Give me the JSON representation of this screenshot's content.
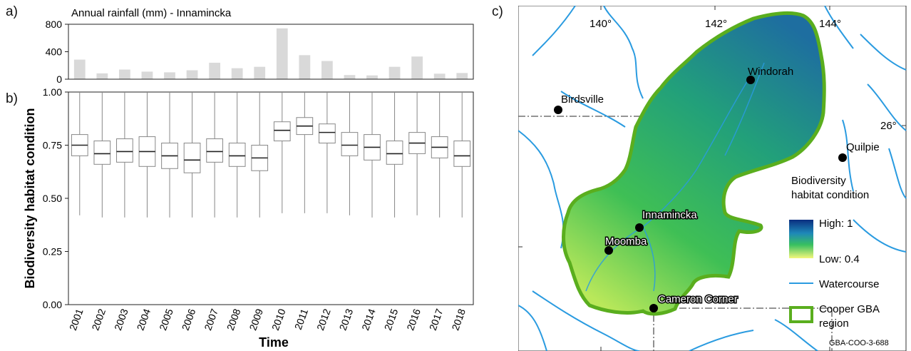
{
  "panels": {
    "a": "a)",
    "b": "b)",
    "c": "c)"
  },
  "chart_data": [
    {
      "type": "bar",
      "title": "Annual rainfall (mm) - Innamincka",
      "categories": [
        "2001",
        "2002",
        "2003",
        "2004",
        "2005",
        "2006",
        "2007",
        "2008",
        "2009",
        "2010",
        "2011",
        "2012",
        "2013",
        "2014",
        "2015",
        "2016",
        "2017",
        "2018"
      ],
      "values": [
        285,
        85,
        140,
        110,
        100,
        130,
        240,
        160,
        180,
        740,
        350,
        265,
        60,
        55,
        180,
        330,
        80,
        90
      ],
      "ylim": [
        0,
        800
      ],
      "yticks": [
        0,
        400,
        800
      ],
      "bar_color": "#d9d9d9"
    },
    {
      "type": "box",
      "xlabel": "Time",
      "ylabel": "Biodiversity habitat condition",
      "categories": [
        "2001",
        "2002",
        "2003",
        "2004",
        "2005",
        "2006",
        "2007",
        "2008",
        "2009",
        "2010",
        "2011",
        "2012",
        "2013",
        "2014",
        "2015",
        "2016",
        "2017",
        "2018"
      ],
      "ylim": [
        0,
        1
      ],
      "yticks": [
        "0.00",
        "0.25",
        "0.50",
        "0.75",
        "1.00"
      ],
      "series": [
        {
          "min": 0.42,
          "q1": 0.7,
          "median": 0.75,
          "q3": 0.8,
          "max": 1.0
        },
        {
          "min": 0.41,
          "q1": 0.66,
          "median": 0.71,
          "q3": 0.77,
          "max": 1.0
        },
        {
          "min": 0.41,
          "q1": 0.67,
          "median": 0.72,
          "q3": 0.78,
          "max": 1.0
        },
        {
          "min": 0.41,
          "q1": 0.65,
          "median": 0.72,
          "q3": 0.79,
          "max": 1.0
        },
        {
          "min": 0.41,
          "q1": 0.64,
          "median": 0.7,
          "q3": 0.76,
          "max": 1.0
        },
        {
          "min": 0.41,
          "q1": 0.62,
          "median": 0.68,
          "q3": 0.76,
          "max": 1.0
        },
        {
          "min": 0.41,
          "q1": 0.67,
          "median": 0.72,
          "q3": 0.78,
          "max": 1.0
        },
        {
          "min": 0.41,
          "q1": 0.65,
          "median": 0.7,
          "q3": 0.76,
          "max": 1.0
        },
        {
          "min": 0.41,
          "q1": 0.63,
          "median": 0.69,
          "q3": 0.75,
          "max": 1.0
        },
        {
          "min": 0.43,
          "q1": 0.77,
          "median": 0.82,
          "q3": 0.86,
          "max": 1.0
        },
        {
          "min": 0.43,
          "q1": 0.8,
          "median": 0.84,
          "q3": 0.88,
          "max": 1.0
        },
        {
          "min": 0.43,
          "q1": 0.76,
          "median": 0.81,
          "q3": 0.85,
          "max": 1.0
        },
        {
          "min": 0.42,
          "q1": 0.7,
          "median": 0.75,
          "q3": 0.81,
          "max": 1.0
        },
        {
          "min": 0.41,
          "q1": 0.68,
          "median": 0.74,
          "q3": 0.8,
          "max": 1.0
        },
        {
          "min": 0.41,
          "q1": 0.66,
          "median": 0.71,
          "q3": 0.77,
          "max": 1.0
        },
        {
          "min": 0.42,
          "q1": 0.71,
          "median": 0.76,
          "q3": 0.81,
          "max": 1.0
        },
        {
          "min": 0.41,
          "q1": 0.69,
          "median": 0.74,
          "q3": 0.79,
          "max": 1.0
        },
        {
          "min": 0.41,
          "q1": 0.65,
          "median": 0.7,
          "q3": 0.77,
          "max": 1.0
        }
      ]
    }
  ],
  "map": {
    "lon_ticks": [
      "140°",
      "142°",
      "144°"
    ],
    "lat_tick": "26°",
    "towns": [
      "Windorah",
      "Birdsville",
      "Quilpie",
      "Innamincka",
      "Moomba",
      "Cameron Corner"
    ],
    "legend": {
      "title": "Biodiversity\nhabitat condition",
      "high": "High: 1",
      "low": "Low: 0.4",
      "watercourse": "Watercourse",
      "region": "Cooper GBA\nregion"
    },
    "code": "GBA-COO-3-688",
    "colors": {
      "region_outline": "#5aae1e",
      "watercourse": "#2a9be0",
      "high": "#0a2d80",
      "low": "#f4f77a"
    }
  }
}
